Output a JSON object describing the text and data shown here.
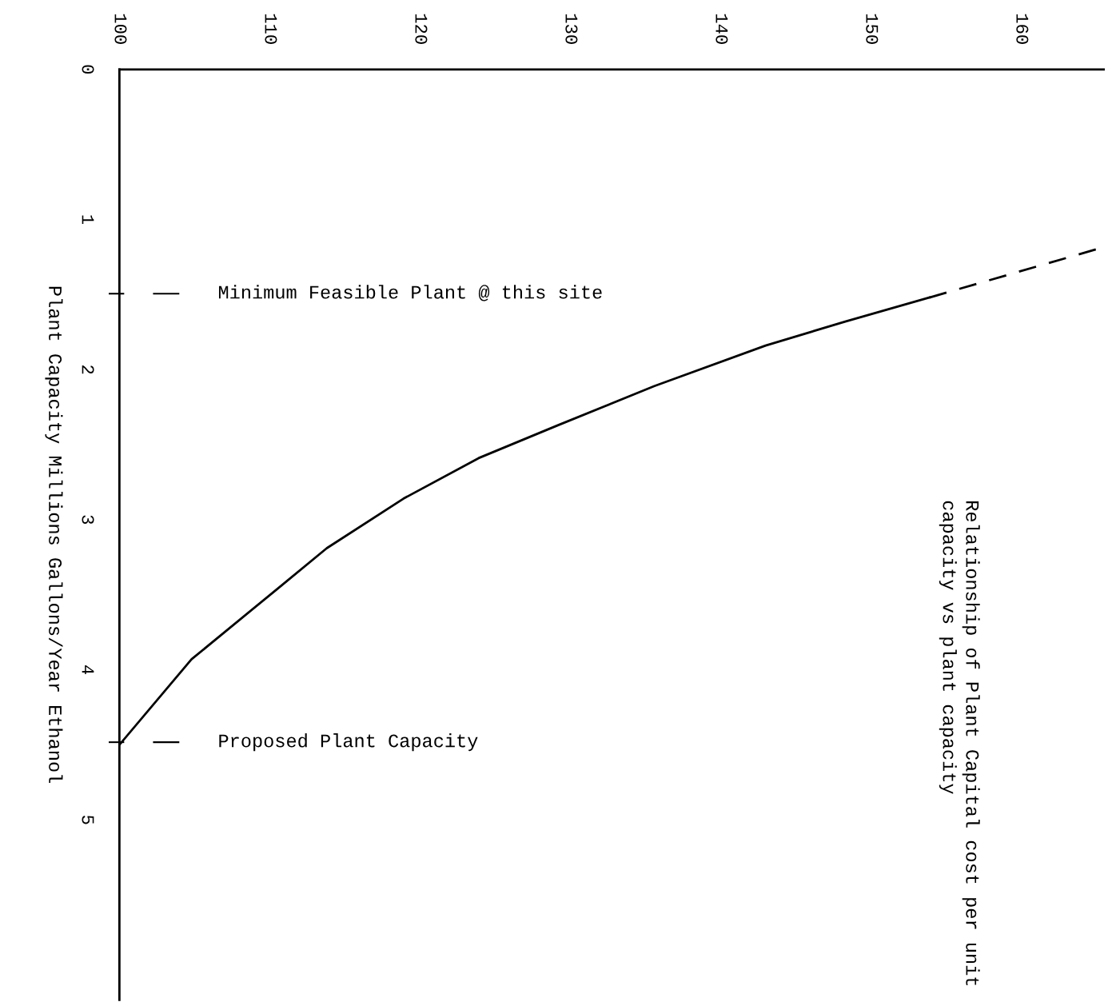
{
  "chart_data": {
    "type": "line",
    "title": "Relationship of Plant Capital cost per unit capacity vs plant capacity",
    "ylabel": "Plant Capacity Millions Gallons/Year Ethanol",
    "xlim": [
      100,
      165.5
    ],
    "xticks": [
      100,
      110,
      120,
      130,
      140,
      150,
      160
    ],
    "ylim": [
      6.2,
      0
    ],
    "yticks": [
      0,
      1,
      2,
      3,
      4,
      5
    ],
    "series": [
      {
        "color": "#000000",
        "line_style": "solid",
        "x": [
          100,
          104.8,
          110.4,
          113.8,
          118.9,
          123.9,
          129.2,
          135.6,
          143,
          148.3,
          153.9
        ],
        "values": [
          4.5,
          3.93,
          3.47,
          3.19,
          2.86,
          2.59,
          2.37,
          2.11,
          1.84,
          1.68,
          1.52
        ]
      },
      {
        "color": "#000000",
        "line_style": "dashed",
        "x": [
          153.9,
          165.3
        ],
        "values": [
          1.52,
          1.19
        ]
      }
    ],
    "annotations": [
      "Minimum Feasible Plant @ this site",
      "Proposed Plant Capacity"
    ],
    "grid": false,
    "legend": false
  }
}
